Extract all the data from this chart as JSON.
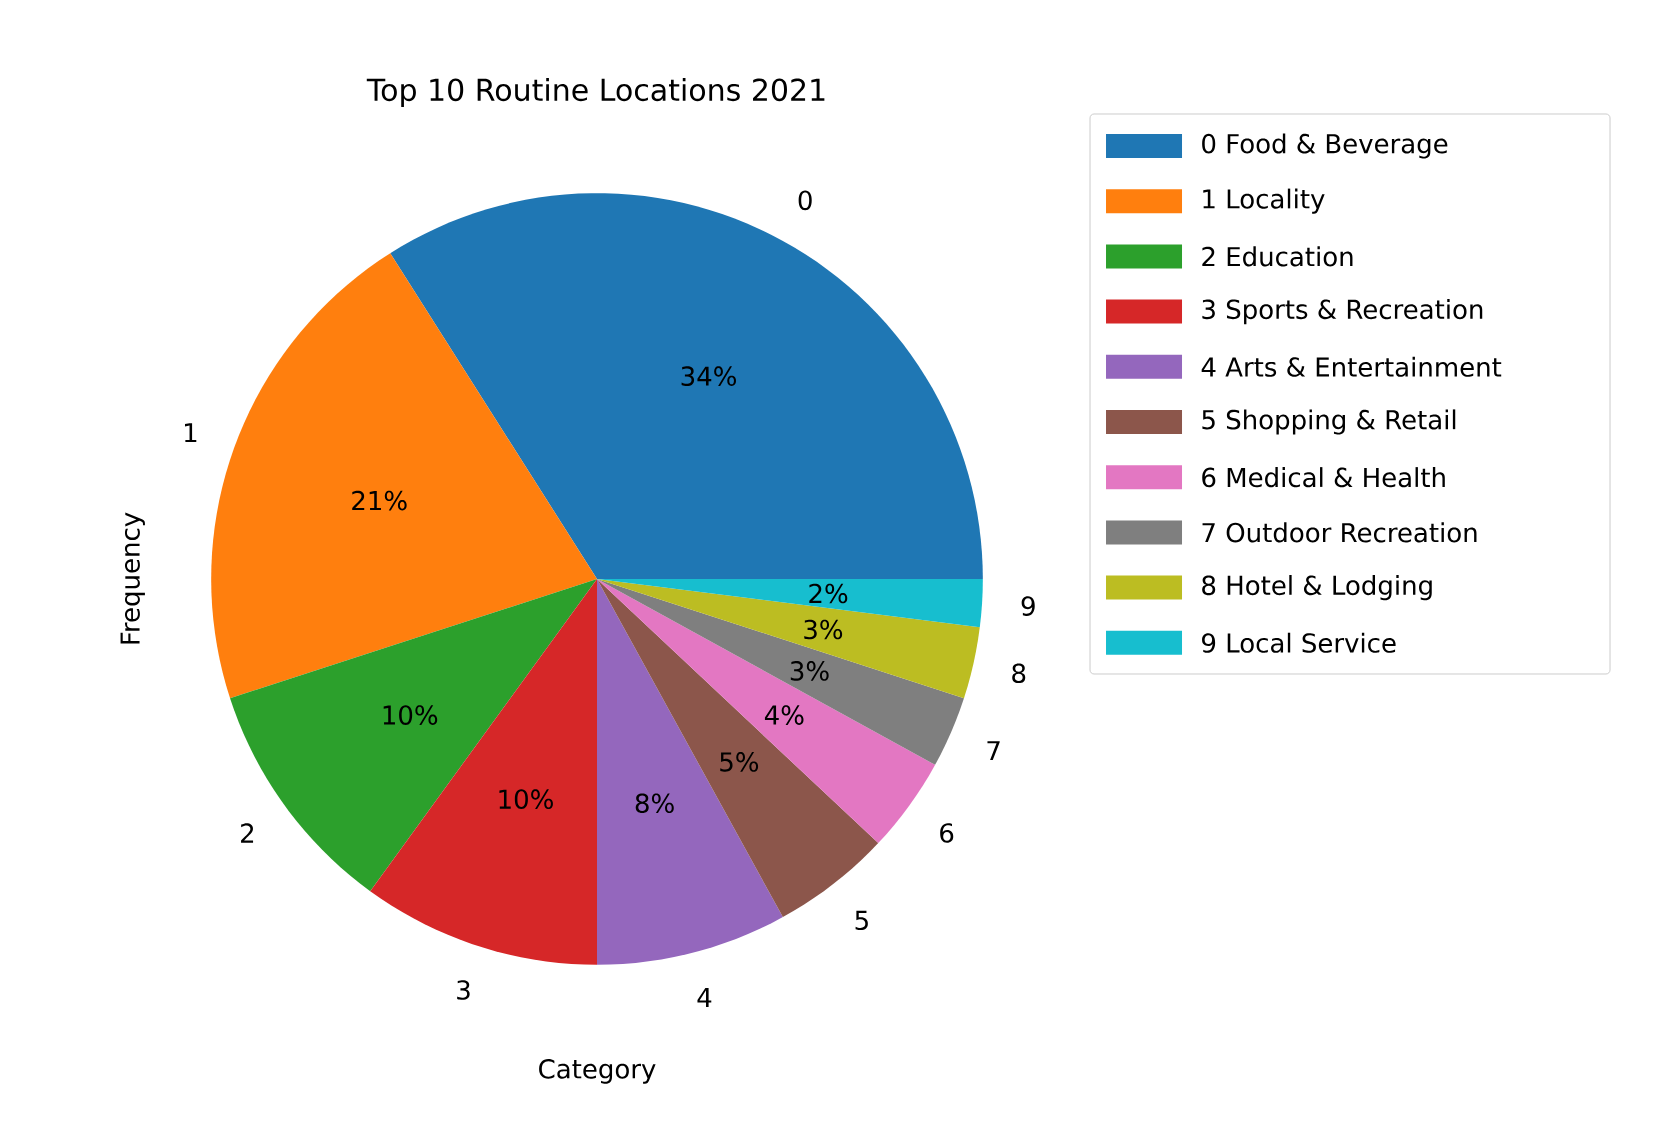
{
  "chart_data": {
    "type": "pie",
    "title": "Top 10 Routine Locations 2021",
    "xlabel": "Category",
    "ylabel": "Frequency",
    "categories": [
      "0 Food & Beverage",
      "1 Locality",
      "2 Education",
      "3 Sports & Recreation",
      "4 Arts & Entertainment",
      "5 Shopping & Retail",
      "6 Medical & Health",
      "7 Outdoor Recreation",
      "8 Hotel & Lodging",
      "9 Local Service"
    ],
    "values": [
      34,
      21,
      10,
      10,
      8,
      5,
      4,
      3,
      3,
      2
    ],
    "value_labels": [
      "34%",
      "21%",
      "10%",
      "10%",
      "8%",
      "5%",
      "4%",
      "3%",
      "3%",
      "2%"
    ],
    "annotations": [
      "0",
      "1",
      "2",
      "3",
      "4",
      "5",
      "6",
      "7",
      "8",
      "9"
    ],
    "colors": [
      "#1f77b4",
      "#ff7f0e",
      "#2ca02c",
      "#d62728",
      "#9467bd",
      "#8c564b",
      "#e377c2",
      "#7f7f7f",
      "#bcbd22",
      "#17becf"
    ],
    "legend": "top right"
  }
}
